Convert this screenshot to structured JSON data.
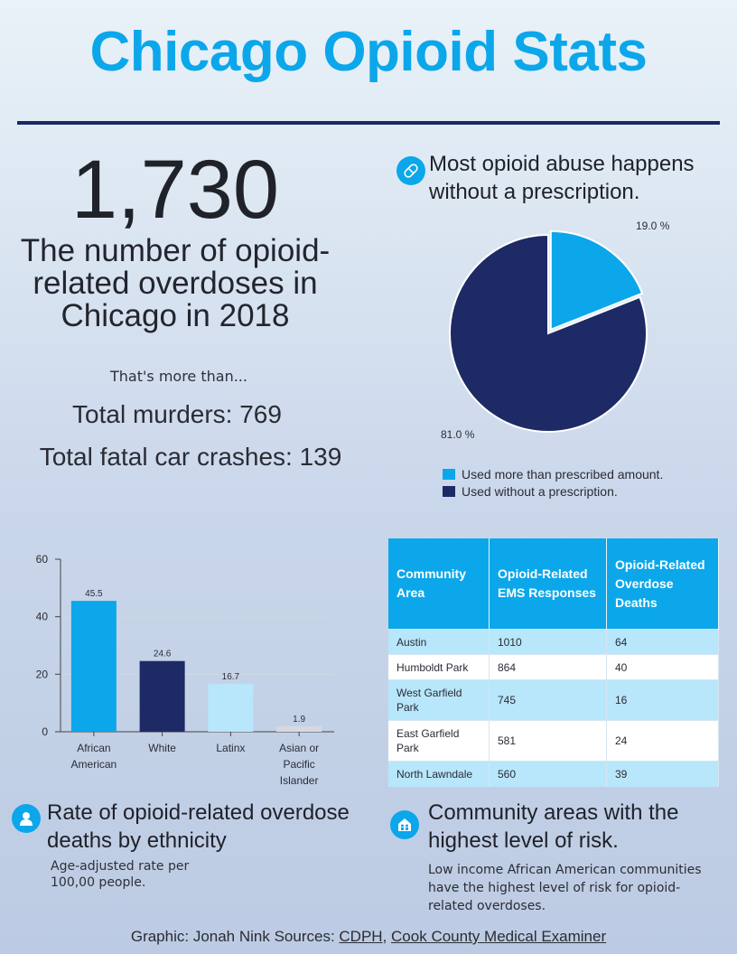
{
  "title": "Chicago Opioid Stats",
  "stat": {
    "value": "1,730",
    "caption": "The number of opioid-related overdoses in Chicago in 2018",
    "more": "That's more than...",
    "murders": "Total murders: 769",
    "crashes": "Total fatal car crashes: 139"
  },
  "colors": {
    "accent": "#0ba7ea",
    "navy": "#1b2862",
    "light": "#b8e6fa"
  },
  "chart_data": [
    {
      "type": "pie",
      "title": "Most opioid abuse happens without a prescription.",
      "labels": [
        "Used more than prescribed amount.",
        "Used without a prescription."
      ],
      "values": [
        19.0,
        81.0
      ],
      "value_labels": [
        "19.0 %",
        "81.0 %"
      ],
      "colors": [
        "#0ba7ea",
        "#1e2a66"
      ],
      "legend": "bottom"
    },
    {
      "type": "bar",
      "title": "Rate of opioid-related overdose deaths by ethnicity",
      "subtitle": "Age-adjusted rate per 100,00 people.",
      "categories": [
        "African American",
        "White",
        "Latinx",
        "Asian or Pacific Islander"
      ],
      "category_lines": [
        [
          "African",
          "American"
        ],
        [
          "White"
        ],
        [
          "Latinx"
        ],
        [
          "Asian or",
          "Pacific",
          "Islander"
        ]
      ],
      "values": [
        45.5,
        24.6,
        16.7,
        1.9
      ],
      "value_labels": [
        "45.5",
        "24.6",
        "16.7",
        "1.9"
      ],
      "colors": [
        "#0ba7ea",
        "#1e2a66",
        "#b8e6fa",
        "#d8d8e0"
      ],
      "ylim": [
        0,
        60
      ],
      "yticks": [
        "0",
        "20",
        "40",
        "60"
      ],
      "ytick_values": [
        0,
        20,
        40,
        60
      ],
      "grid": true
    }
  ],
  "table": {
    "title": "Community areas with the highest level of risk.",
    "subtitle": "Low income African American communities have the highest level of risk for opioid-related overdoses.",
    "headers": [
      "Community Area",
      "Opioid-Related EMS Responses",
      "Opioid-Related Overdose Deaths"
    ],
    "rows": [
      [
        "Austin",
        "1010",
        "64"
      ],
      [
        "Humboldt Park",
        "864",
        "40"
      ],
      [
        "West Garfield Park",
        "745",
        "16"
      ],
      [
        "East Garfield Park",
        "581",
        "24"
      ],
      [
        "North Lawndale",
        "560",
        "39"
      ]
    ]
  },
  "footer": {
    "text": "Graphic: Jonah Nink Sources: ",
    "link1": "CDPH",
    "sep": ", ",
    "link2": "Cook County Medical Examiner"
  },
  "icons": [
    "pill-icon",
    "person-icon",
    "home-icon"
  ]
}
